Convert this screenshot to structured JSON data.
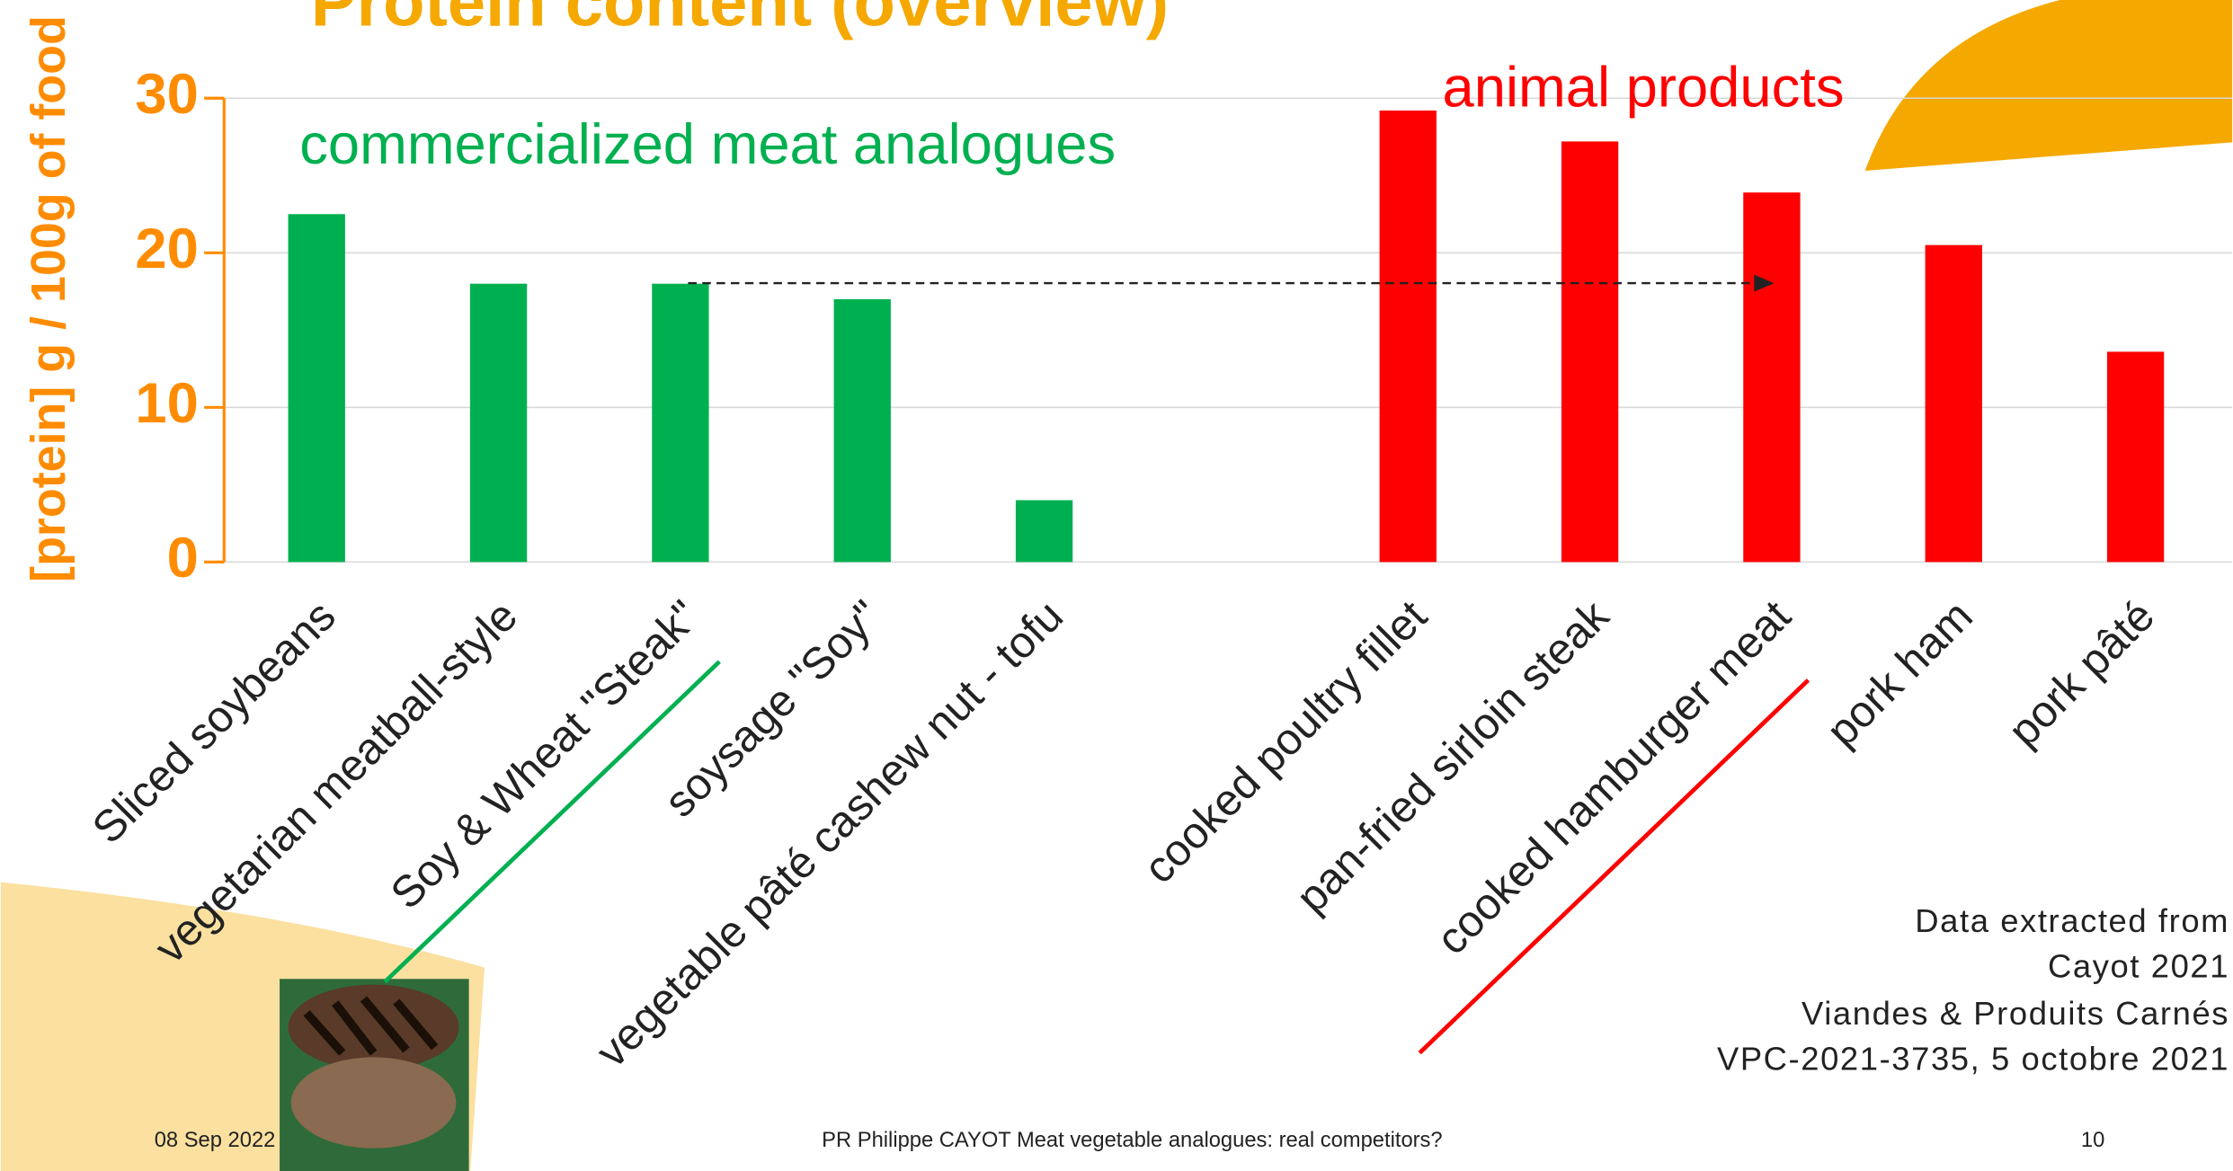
{
  "chart_data": {
    "type": "bar",
    "title": "Protein content (overview)",
    "ylabel": "[protein] g / 100g of food",
    "categories": [
      "Sliced soybeans",
      "vegetarian meatball-style",
      "Soy & Wheat \"Steak\"",
      "soysage \"Soy\"",
      "vegetable pâté cashew nut - tofu",
      null,
      "cooked poultry fillet",
      "pan-fried sirloin steak",
      "cooked hamburger meat",
      "pork ham",
      "pork pâté"
    ],
    "values": [
      22.5,
      18,
      18,
      17,
      4,
      null,
      29.2,
      27.2,
      23.9,
      20.5,
      13.6
    ],
    "colors": [
      "#00b050",
      "#00b050",
      "#00b050",
      "#00b050",
      "#00b050",
      null,
      "#ff0000",
      "#ff0000",
      "#ff0000",
      "#ff0000",
      "#ff0000"
    ],
    "ylim": [
      0,
      30
    ],
    "yticks": [
      0,
      10,
      20,
      30
    ],
    "grid": true,
    "annotations": [
      {
        "text": "commercialized meat analogues",
        "color": "#00b050"
      },
      {
        "text": "animal products",
        "color": "#ff0000"
      }
    ]
  },
  "source": [
    "Data extracted from",
    "Cayot 2021",
    "Viandes & Produits Carnés",
    "VPC-2021-3735, 5 octobre 2021"
  ],
  "footer": {
    "date": "08 Sep 2022",
    "text": "PR Philippe CAYOT Meat vegetable analogues: real competitors?",
    "page": "10"
  }
}
